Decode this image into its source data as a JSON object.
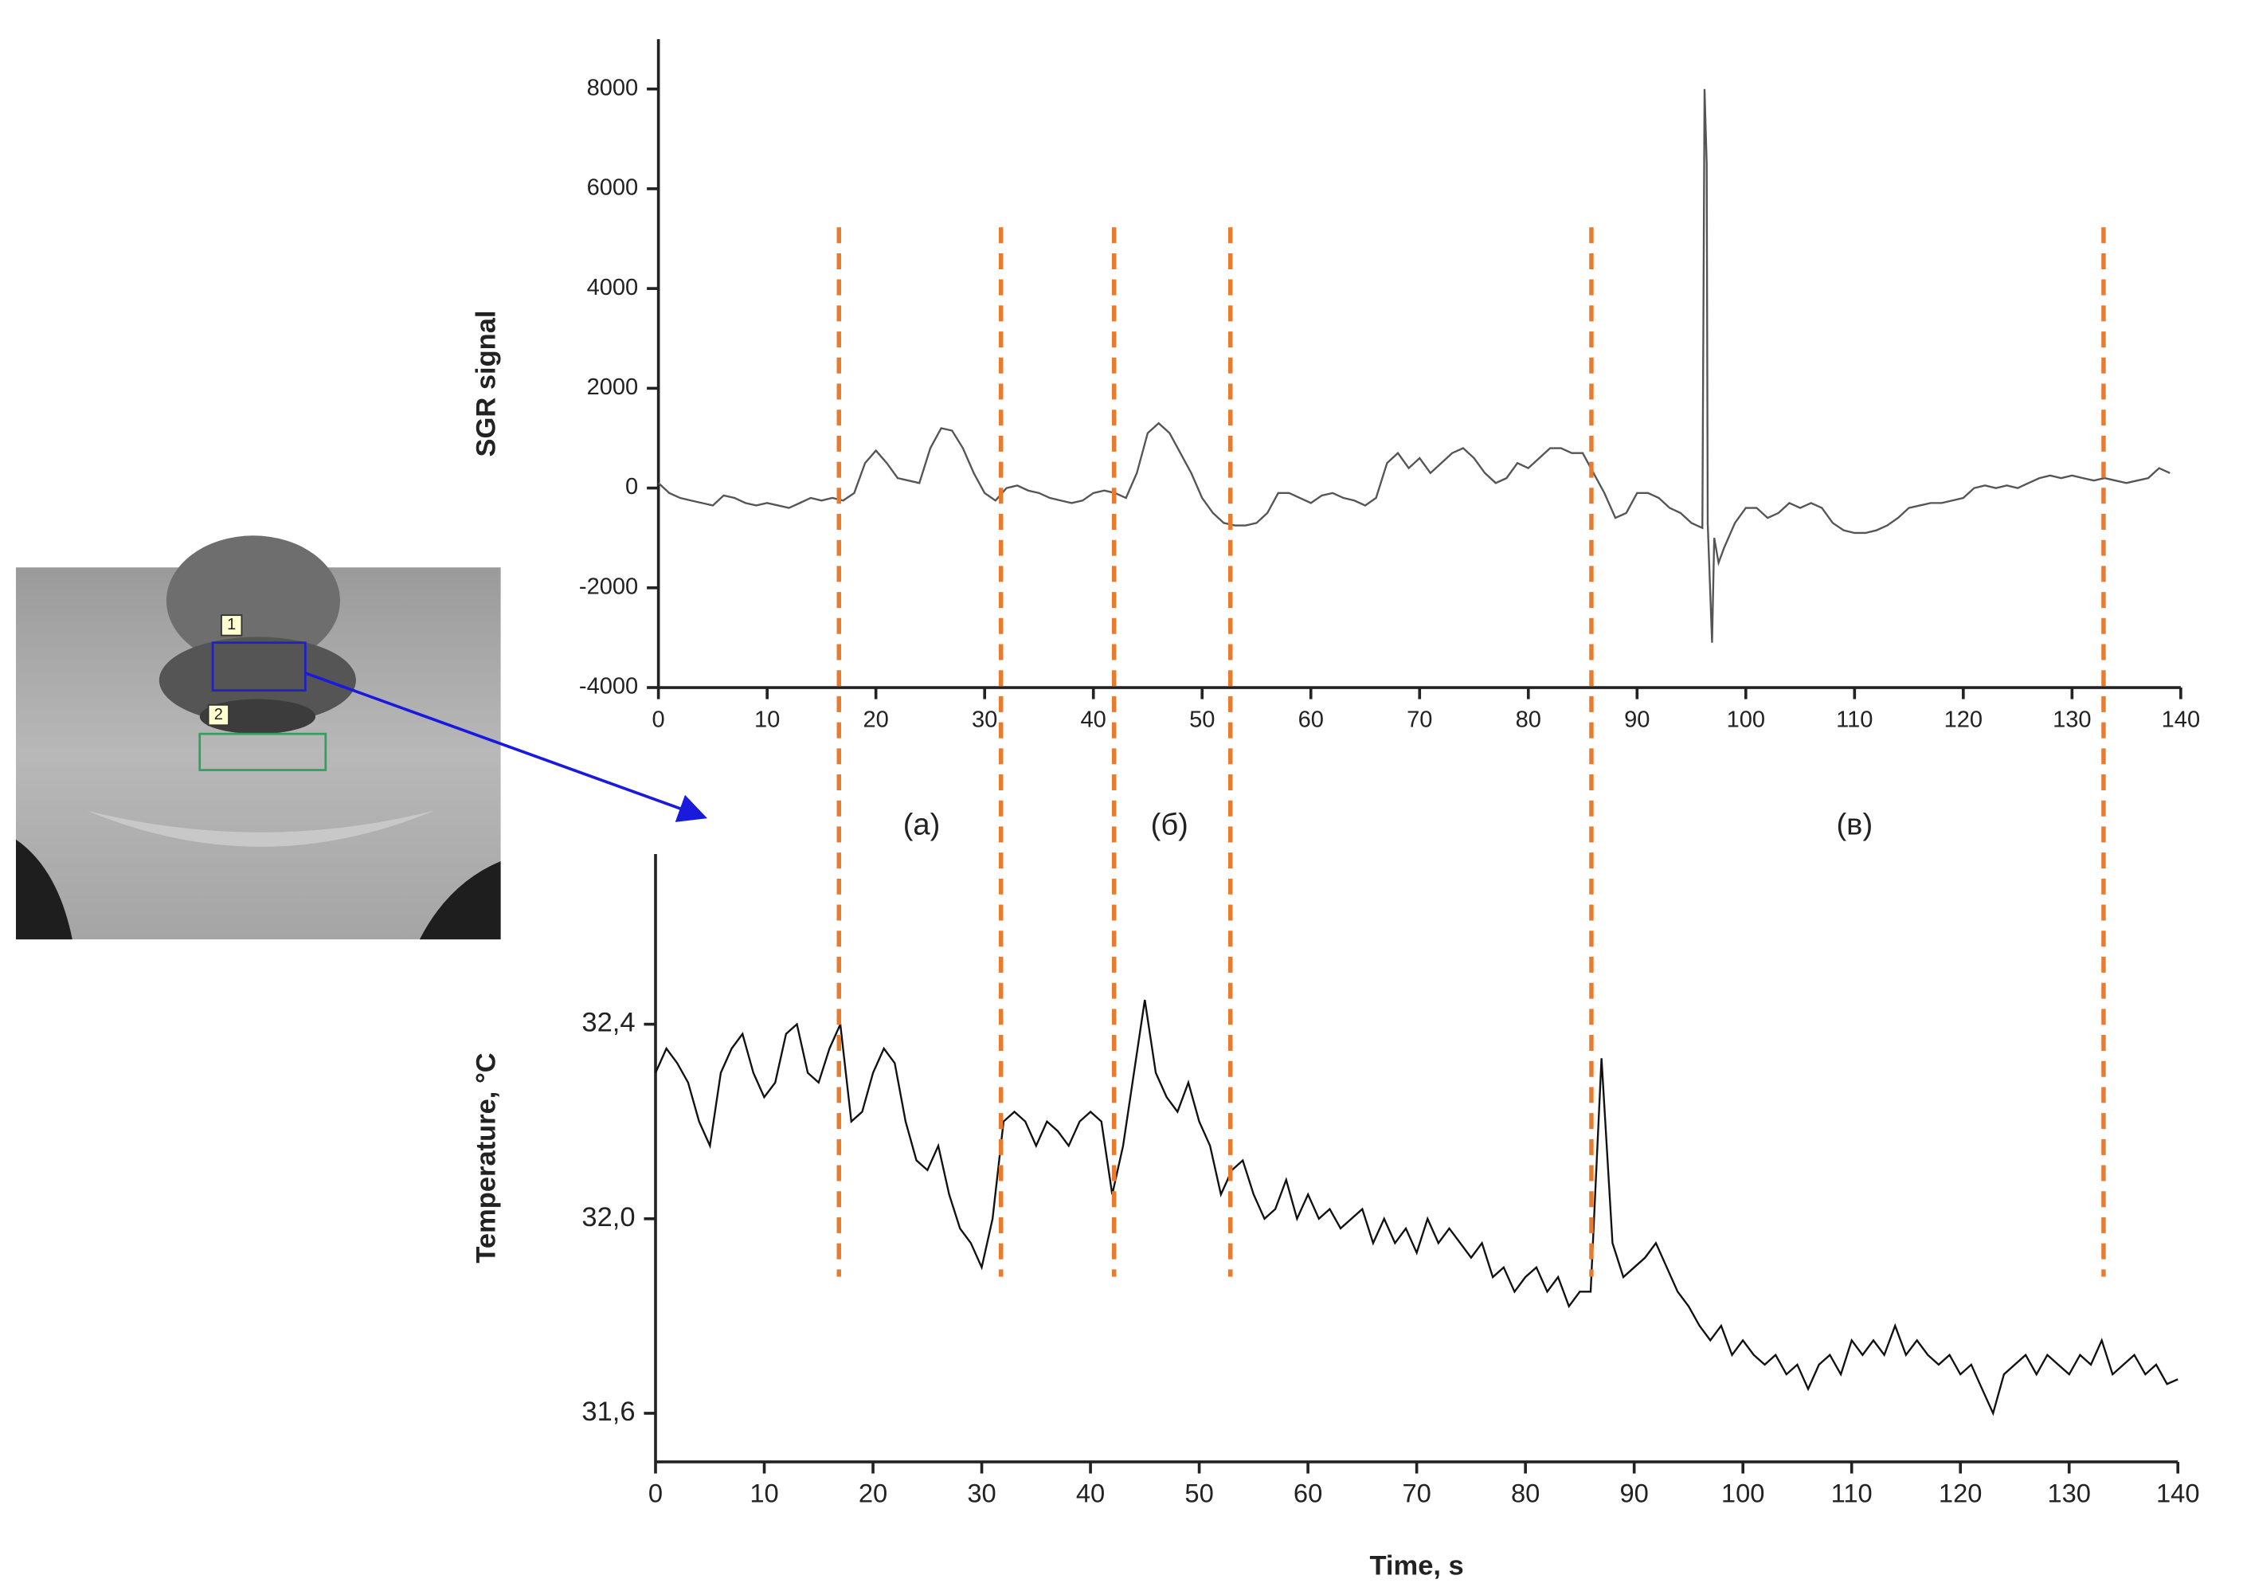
{
  "chart_data": [
    {
      "type": "line",
      "ylabel": "SGR signal",
      "x": [
        0,
        1,
        2,
        3,
        4,
        5,
        6,
        7,
        8,
        9,
        10,
        11,
        12,
        13,
        14,
        15,
        16,
        17,
        18,
        19,
        20,
        21,
        22,
        23,
        24,
        25,
        26,
        27,
        28,
        29,
        30,
        31,
        32,
        33,
        34,
        35,
        36,
        37,
        38,
        39,
        40,
        41,
        42,
        43,
        44,
        45,
        46,
        47,
        48,
        49,
        50,
        51,
        52,
        53,
        54,
        55,
        56,
        57,
        58,
        59,
        60,
        61,
        62,
        63,
        64,
        65,
        66,
        67,
        68,
        69,
        70,
        71,
        72,
        73,
        74,
        75,
        76,
        77,
        78,
        79,
        80,
        81,
        82,
        83,
        84,
        85,
        86,
        87,
        88,
        89,
        90,
        91,
        92,
        93,
        94,
        95,
        95.5,
        96,
        96.2,
        96.4,
        96.5,
        96.9,
        97.1,
        97.5,
        98,
        99,
        100,
        101,
        102,
        103,
        104,
        105,
        106,
        107,
        108,
        109,
        110,
        111,
        112,
        113,
        114,
        115,
        116,
        117,
        118,
        119,
        120,
        121,
        122,
        123,
        124,
        125,
        126,
        127,
        128,
        129,
        130,
        131,
        132,
        133,
        134,
        135,
        136,
        137,
        138,
        139
      ],
      "series": [
        {
          "color": "#555555",
          "values": [
            100,
            -100,
            -200,
            -250,
            -300,
            -350,
            -150,
            -200,
            -300,
            -350,
            -300,
            -350,
            -400,
            -300,
            -200,
            -250,
            -200,
            -250,
            -100,
            500,
            750,
            500,
            200,
            150,
            100,
            800,
            1200,
            1150,
            800,
            300,
            -100,
            -250,
            0,
            50,
            -50,
            -100,
            -200,
            -250,
            -300,
            -250,
            -100,
            -50,
            -100,
            -200,
            300,
            1100,
            1300,
            1100,
            700,
            300,
            -200,
            -500,
            -700,
            -750,
            -750,
            -700,
            -500,
            -100,
            -100,
            -200,
            -300,
            -150,
            -100,
            -200,
            -250,
            -350,
            -200,
            500,
            700,
            400,
            600,
            300,
            500,
            700,
            800,
            600,
            300,
            100,
            200,
            500,
            400,
            600,
            800,
            800,
            700,
            700,
            300,
            -100,
            -600,
            -500,
            -100,
            -100,
            -200,
            -400,
            -500,
            -700,
            -750,
            -800,
            8000,
            6500,
            -700,
            -3100,
            -1000,
            -1500,
            -1200,
            -700,
            -400,
            -400,
            -600,
            -500,
            -300,
            -400,
            -300,
            -400,
            -700,
            -850,
            -900,
            -900,
            -850,
            -750,
            -600,
            -400,
            -350,
            -300,
            -300,
            -250,
            -200,
            0,
            50,
            0,
            50,
            0,
            100,
            200,
            250,
            200,
            250,
            200,
            150,
            200,
            150,
            100,
            150,
            200,
            400,
            300
          ]
        }
      ],
      "xlim": [
        0,
        140
      ],
      "ylim": [
        -4000,
        9000
      ],
      "xticks": [
        0,
        10,
        20,
        30,
        40,
        50,
        60,
        70,
        80,
        90,
        100,
        110,
        120,
        130,
        140
      ],
      "yticks": [
        -4000,
        -2000,
        0,
        2000,
        4000,
        6000,
        8000
      ]
    },
    {
      "type": "line",
      "ylabel": "Temperature, °C",
      "xlabel": "Time, s",
      "x": [
        0,
        1,
        2,
        3,
        4,
        5,
        6,
        7,
        8,
        9,
        10,
        11,
        12,
        13,
        14,
        15,
        16,
        17,
        18,
        19,
        20,
        21,
        22,
        23,
        24,
        25,
        26,
        27,
        28,
        29,
        30,
        31,
        32,
        33,
        34,
        35,
        36,
        37,
        38,
        39,
        40,
        41,
        42,
        43,
        44,
        45,
        46,
        47,
        48,
        49,
        50,
        51,
        52,
        53,
        54,
        55,
        56,
        57,
        58,
        59,
        60,
        61,
        62,
        63,
        64,
        65,
        66,
        67,
        68,
        69,
        70,
        71,
        72,
        73,
        74,
        75,
        76,
        77,
        78,
        79,
        80,
        81,
        82,
        83,
        84,
        85,
        86,
        87,
        88,
        89,
        90,
        91,
        92,
        93,
        94,
        95,
        96,
        97,
        98,
        99,
        100,
        101,
        102,
        103,
        104,
        105,
        106,
        107,
        108,
        109,
        110,
        111,
        112,
        113,
        114,
        115,
        116,
        117,
        118,
        119,
        120,
        121,
        122,
        123,
        124,
        125,
        126,
        127,
        128,
        129,
        130,
        131,
        132,
        133,
        134,
        135,
        136,
        137,
        138,
        139,
        140
      ],
      "series": [
        {
          "color": "#111111",
          "values": [
            32.3,
            32.35,
            32.32,
            32.28,
            32.2,
            32.15,
            32.3,
            32.35,
            32.38,
            32.3,
            32.25,
            32.28,
            32.38,
            32.4,
            32.3,
            32.28,
            32.35,
            32.4,
            32.2,
            32.22,
            32.3,
            32.35,
            32.32,
            32.2,
            32.12,
            32.1,
            32.15,
            32.05,
            31.98,
            31.95,
            31.9,
            32.0,
            32.2,
            32.22,
            32.2,
            32.15,
            32.2,
            32.18,
            32.15,
            32.2,
            32.22,
            32.2,
            32.05,
            32.15,
            32.3,
            32.45,
            32.3,
            32.25,
            32.22,
            32.28,
            32.2,
            32.15,
            32.05,
            32.1,
            32.12,
            32.05,
            32.0,
            32.02,
            32.08,
            32.0,
            32.05,
            32.0,
            32.02,
            31.98,
            32.0,
            32.02,
            31.95,
            32.0,
            31.95,
            31.98,
            31.93,
            32.0,
            31.95,
            31.98,
            31.95,
            31.92,
            31.95,
            31.88,
            31.9,
            31.85,
            31.88,
            31.9,
            31.85,
            31.88,
            31.82,
            31.85,
            31.85,
            32.33,
            31.95,
            31.88,
            31.9,
            31.92,
            31.95,
            31.9,
            31.85,
            31.82,
            31.78,
            31.75,
            31.78,
            31.72,
            31.75,
            31.72,
            31.7,
            31.72,
            31.68,
            31.7,
            31.65,
            31.7,
            31.72,
            31.68,
            31.75,
            31.72,
            31.75,
            31.72,
            31.78,
            31.72,
            31.75,
            31.72,
            31.7,
            31.72,
            31.68,
            31.7,
            31.65,
            31.6,
            31.68,
            31.7,
            31.72,
            31.68,
            31.72,
            31.7,
            31.68,
            31.72,
            31.7,
            31.75,
            31.68,
            31.7,
            31.72,
            31.68,
            31.7,
            31.66,
            31.67
          ]
        }
      ],
      "xlim": [
        0,
        140
      ],
      "ylim": [
        31.5,
        32.75
      ],
      "xticks": [
        0,
        10,
        20,
        30,
        40,
        50,
        60,
        70,
        80,
        90,
        100,
        110,
        120,
        130,
        140
      ],
      "yticks": [
        {
          "value": 31.6,
          "label": "31,6"
        },
        {
          "value": 32.0,
          "label": "32,0"
        },
        {
          "value": 32.4,
          "label": "32,4"
        }
      ]
    }
  ],
  "annotations": {
    "color": "#e87b2e",
    "dividers": [
      16.6,
      31.5,
      41.9,
      52.6,
      85.8,
      132.9
    ],
    "labels": [
      {
        "text": "(а)",
        "x": 24.2
      },
      {
        "text": "(б)",
        "x": 47.0
      },
      {
        "text": "(в)",
        "x": 110
      }
    ]
  },
  "image": {
    "roi_labels": [
      "1",
      "2"
    ]
  }
}
